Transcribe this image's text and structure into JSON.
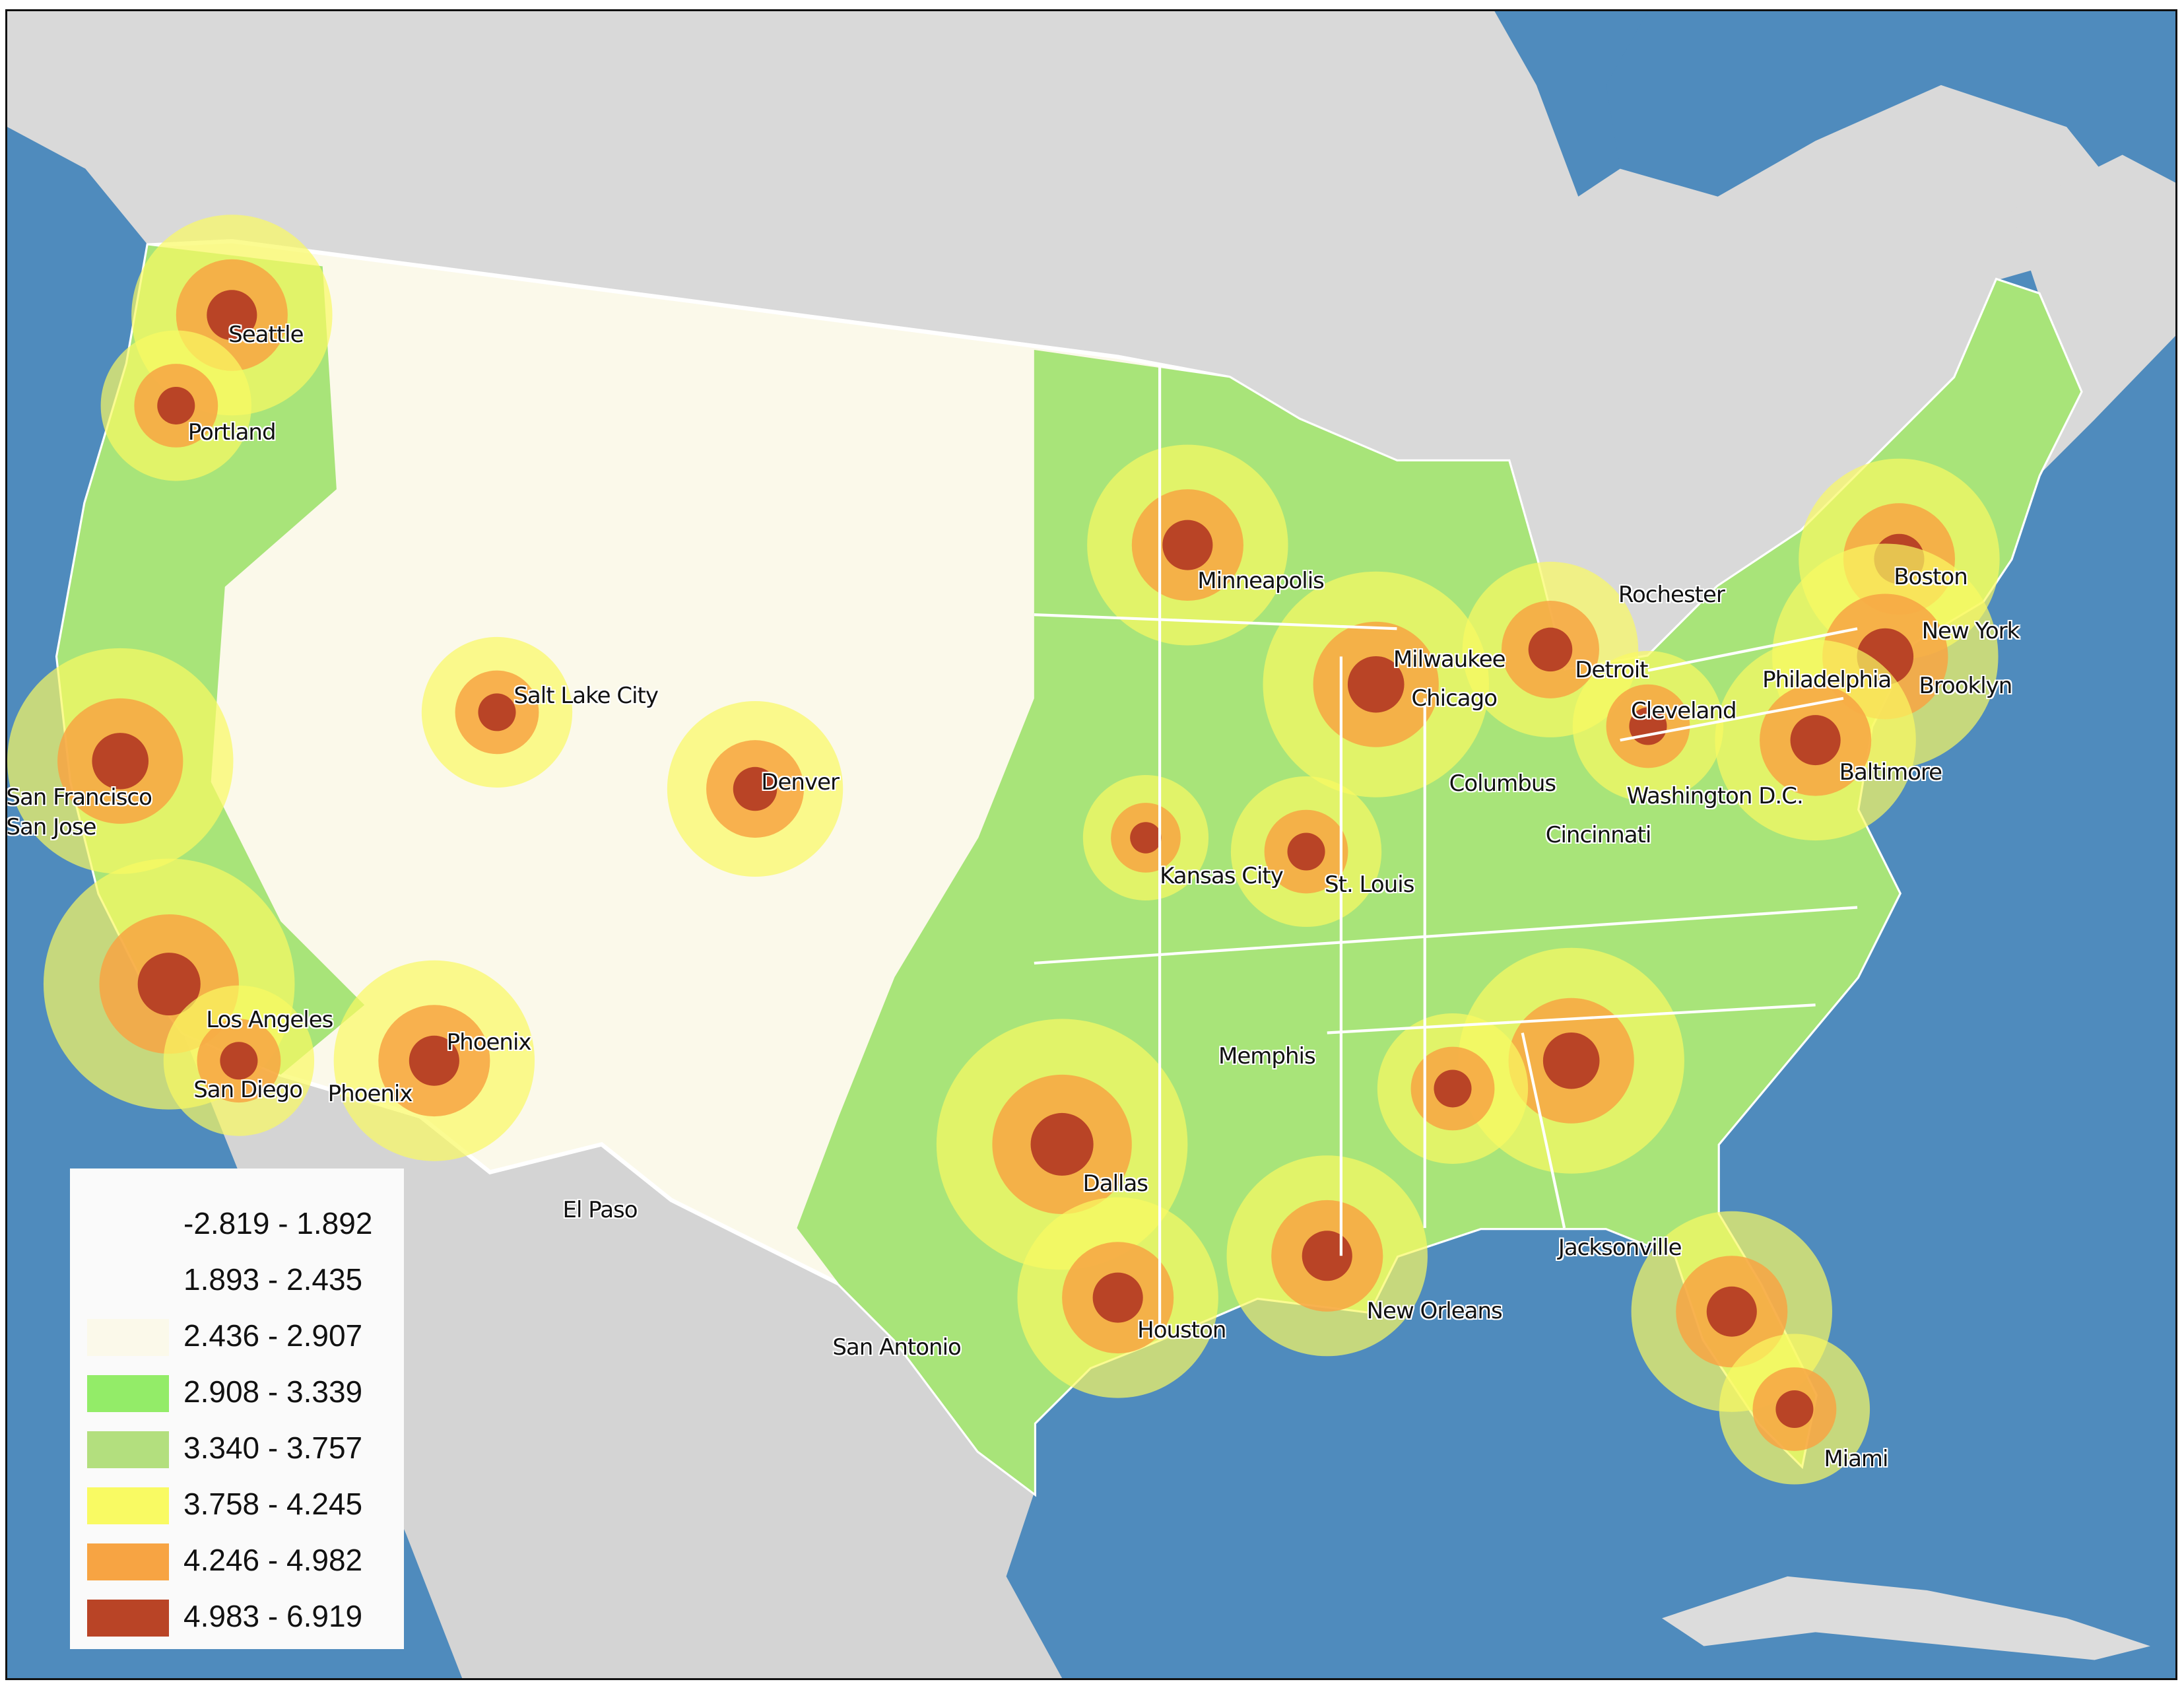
{
  "legend": {
    "classes": [
      {
        "range": "-2.819 - 1.892",
        "color": "#fafafa"
      },
      {
        "range": "1.893 - 2.435",
        "color": "#fafafa"
      },
      {
        "range": "2.436 - 2.907",
        "color": "#fbf9ea"
      },
      {
        "range": "2.908 - 3.339",
        "color": "#93ec68"
      },
      {
        "range": "3.340 - 3.757",
        "color": "#b3df7e"
      },
      {
        "range": "3.758 - 4.245",
        "color": "#f9fa63"
      },
      {
        "range": "4.246 - 4.982",
        "color": "#f7a443"
      },
      {
        "range": "4.983 - 6.919",
        "color": "#b94426"
      }
    ]
  },
  "colors": {
    "water": "#4f8bbd",
    "land_outside": "#d8d8d8",
    "state_border": "#ffffff"
  },
  "city_labels": [
    "Seattle",
    "Portland",
    "Salt Lake City",
    "San Francisco",
    "San Jose",
    "Denver",
    "Los Angeles",
    "Phoenix",
    "San Diego",
    "Phoenix",
    "El Paso",
    "San Antonio",
    "Dallas",
    "Houston",
    "New Orleans",
    "Memphis",
    "Kansas City",
    "St. Louis",
    "Minneapolis",
    "Milwaukee",
    "Chicago",
    "Detroit",
    "Rochester",
    "Boston",
    "New York",
    "Philadelphia",
    "Brooklyn",
    "Cleveland",
    "Baltimore",
    "Columbus",
    "Washington D.C.",
    "Cincinnati",
    "Jacksonville",
    "Miami"
  ]
}
